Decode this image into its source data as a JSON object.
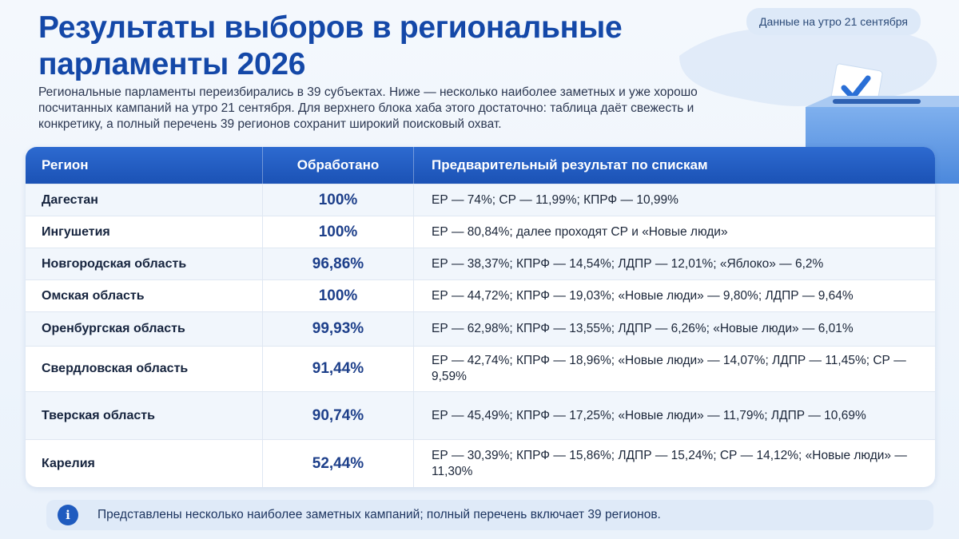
{
  "title": "Результаты выборов в региональные парламенты 2026",
  "date_badge": "Данные на утро 21 сентября",
  "intro": "Региональные парламенты переизбирались в 39 субъектах. Ниже — несколько наиболее заметных и уже хорошо посчитанных кампаний на утро 21 сентября. Для верхнего блока хаба этого достаточно: таблица даёт свежесть и конкретику, а полный перечень 39 регионов сохранит широкий поисковый охват.",
  "table": {
    "headers": {
      "region": "Регион",
      "processed": "Обработано",
      "result": "Предварительный результат по спискам"
    },
    "rows": [
      {
        "region": "Дагестан",
        "processed": "100%",
        "result": "ЕР — 74%; СР — 11,99%; КПРФ — 10,99%"
      },
      {
        "region": "Ингушетия",
        "processed": "100%",
        "result": "ЕР — 80,84%; далее проходят СР и «Новые люди»"
      },
      {
        "region": "Новгородская область",
        "processed": "96,86%",
        "result": "ЕР — 38,37%; КПРФ — 14,54%; ЛДПР — 12,01%; «Яблоко» — 6,2%"
      },
      {
        "region": "Омская область",
        "processed": "100%",
        "result": "ЕР — 44,72%; КПРФ — 19,03%; «Новые люди» — 9,80%; ЛДПР — 9,64%"
      },
      {
        "region": "Оренбургская область",
        "processed": "99,93%",
        "result": "ЕР — 62,98%; КПРФ — 13,55%; ЛДПР — 6,26%; «Новые люди» — 6,01%"
      },
      {
        "region": "Свердловская область",
        "processed": "91,44%",
        "result": "ЕР — 42,74%; КПРФ — 18,96%; «Новые люди» — 14,07%; ЛДПР — 11,45%; СР — 9,59%"
      },
      {
        "region": "Тверская область",
        "processed": "90,74%",
        "result": "ЕР — 45,49%; КПРФ — 17,25%; «Новые люди» — 11,79%; ЛДПР — 10,69%"
      },
      {
        "region": "Карелия",
        "processed": "52,44%",
        "result": "ЕР — 30,39%; КПРФ — 15,86%; ЛДПР — 15,24%; СР — 14,12%; «Новые люди» — 11,30%"
      }
    ]
  },
  "note": {
    "icon": "info-icon",
    "text": "Представлены несколько наиболее заметных кампаний; полный перечень включает 39 регионов."
  },
  "colors": {
    "title": "#1448a8",
    "header_bg": "#1b52b5",
    "accent": "#1d3f8a"
  }
}
